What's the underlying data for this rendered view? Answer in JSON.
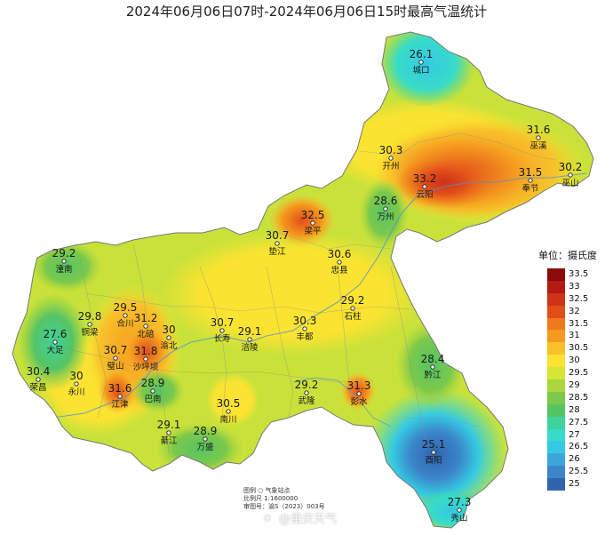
{
  "title": "2024年06月06日07时-2024年06月06日15时最高气温统计",
  "legend": {
    "title": "单位：摄氏度",
    "items": [
      {
        "label": "33.5",
        "color": "#8b0a0a"
      },
      {
        "label": "33",
        "color": "#b21a12"
      },
      {
        "label": "32.5",
        "color": "#cf3217"
      },
      {
        "label": "32",
        "color": "#e24e1b"
      },
      {
        "label": "31.5",
        "color": "#ef7a1d"
      },
      {
        "label": "31",
        "color": "#f59a1f"
      },
      {
        "label": "30.5",
        "color": "#f8c12a"
      },
      {
        "label": "30",
        "color": "#fae331"
      },
      {
        "label": "29.5",
        "color": "#d6e634"
      },
      {
        "label": "29",
        "color": "#abd63e"
      },
      {
        "label": "28.5",
        "color": "#7cc94b"
      },
      {
        "label": "28",
        "color": "#55c465"
      },
      {
        "label": "27.5",
        "color": "#3fd39c"
      },
      {
        "label": "27",
        "color": "#37dcc8"
      },
      {
        "label": "26.5",
        "color": "#35c9e3"
      },
      {
        "label": "26",
        "color": "#3aa6dc"
      },
      {
        "label": "25.5",
        "color": "#3b86c9"
      },
      {
        "label": "25",
        "color": "#2f64ad"
      }
    ]
  },
  "stations": [
    {
      "name": "城口",
      "value": "26.1"
    },
    {
      "name": "巫溪",
      "value": "31.6"
    },
    {
      "name": "开州",
      "value": "30.3"
    },
    {
      "name": "云阳",
      "value": "33.2"
    },
    {
      "name": "奉节",
      "value": "31.5"
    },
    {
      "name": "巫山",
      "value": "30.2"
    },
    {
      "name": "梁平",
      "value": "32.5"
    },
    {
      "name": "万州",
      "value": "28.6"
    },
    {
      "name": "垫江",
      "value": "30.7"
    },
    {
      "name": "忠县",
      "value": "30.6"
    },
    {
      "name": "潼南",
      "value": "29.2"
    },
    {
      "name": "合川",
      "value": "29.5"
    },
    {
      "name": "铜梁",
      "value": "29.8"
    },
    {
      "name": "北碚",
      "value": "31.2"
    },
    {
      "name": "渝北",
      "value": "30"
    },
    {
      "name": "长寿",
      "value": "30.7"
    },
    {
      "name": "涪陵",
      "value": "29.1"
    },
    {
      "name": "丰都",
      "value": "30.3"
    },
    {
      "name": "石柱",
      "value": "29.2"
    },
    {
      "name": "大足",
      "value": "27.6"
    },
    {
      "name": "璧山",
      "value": "30.7"
    },
    {
      "name": "沙坪坝",
      "value": "31.8"
    },
    {
      "name": "荣昌",
      "value": "30.4"
    },
    {
      "name": "永川",
      "value": "30"
    },
    {
      "name": "江津",
      "value": "31.6"
    },
    {
      "name": "巴南",
      "value": "28.9"
    },
    {
      "name": "南川",
      "value": "30.5"
    },
    {
      "name": "武隆",
      "value": "29.2"
    },
    {
      "name": "彭水",
      "value": "31.3"
    },
    {
      "name": "黔江",
      "value": "28.4"
    },
    {
      "name": "綦江",
      "value": "29.1"
    },
    {
      "name": "万盛",
      "value": "28.9"
    },
    {
      "name": "酉阳",
      "value": "25.1"
    },
    {
      "name": "秀山",
      "value": "27.3"
    }
  ],
  "notes": {
    "line1": "图例   ○  气象站点",
    "line2": "比例尺  1:1600000",
    "line3": "审图号：渝S（2023）003号"
  },
  "watermark": "@重庆天气",
  "watermark_icon": "weibo-icon"
}
